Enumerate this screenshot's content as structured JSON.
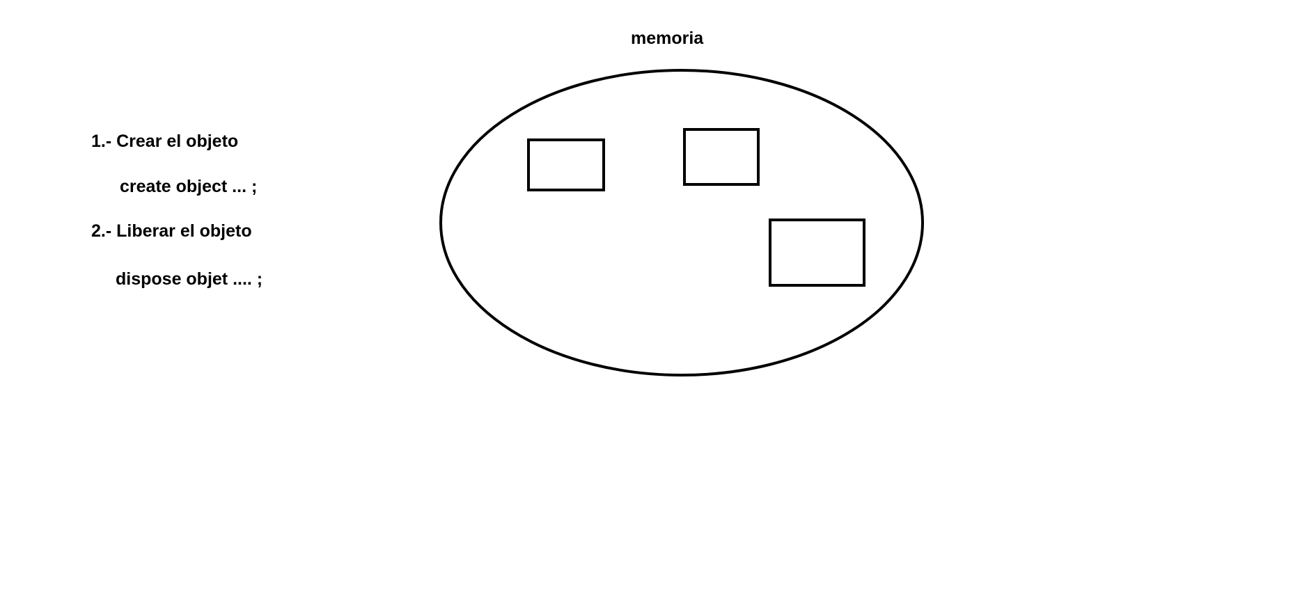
{
  "title": "memoria",
  "steps": [
    {
      "heading": "1.- Crear el objeto",
      "code": "create object ... ;"
    },
    {
      "heading": "2.- Liberar el objeto",
      "code": "dispose objet .... ;"
    }
  ],
  "colors": {
    "background": "#ffffff",
    "stroke": "#000000",
    "text": "#000000"
  }
}
